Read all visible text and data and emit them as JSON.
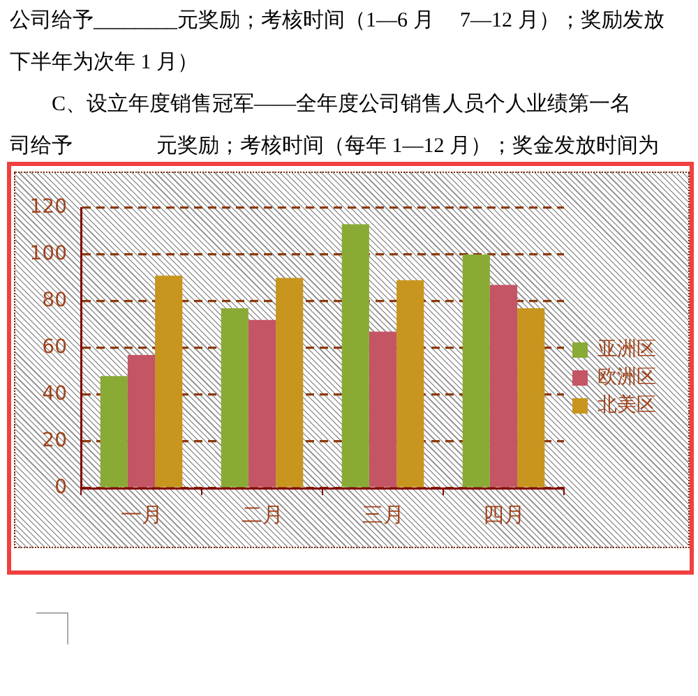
{
  "chart_data": {
    "type": "bar",
    "annotations": [
      "公司给予________元奖励；考核时间（1—6 月     7—12 月）；奖励发放",
      "下半年为次年 1 月）",
      "　　C、设立年度销售冠军——全年度公司销售人员个人业绩第一名",
      "司给予　　　　元奖励；考核时间（每年 1—12 月）；奖金发放时间为"
    ],
    "categories": [
      "一月",
      "二月",
      "三月",
      "四月"
    ],
    "series": [
      {
        "name": "亚洲区",
        "color": "#8aaa36",
        "values": [
          48,
          77,
          113,
          100
        ]
      },
      {
        "name": "欧洲区",
        "color": "#c45565",
        "values": [
          57,
          72,
          67,
          87
        ]
      },
      {
        "name": "北美区",
        "color": "#c8951f",
        "values": [
          91,
          90,
          89,
          77
        ]
      }
    ],
    "ylim": [
      0,
      120
    ],
    "yticks": [
      0,
      20,
      40,
      60,
      80,
      100,
      120
    ],
    "grid": "y",
    "legend": "right"
  }
}
